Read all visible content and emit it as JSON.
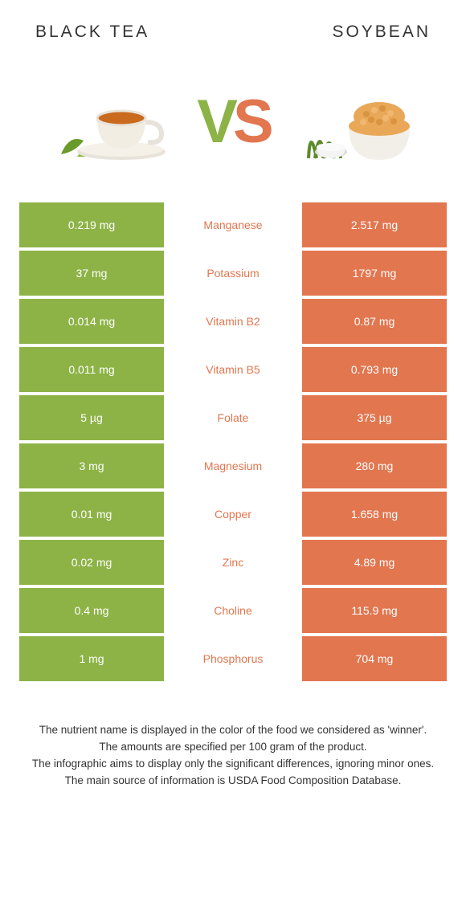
{
  "colors": {
    "left": "#8db347",
    "right": "#e2764f",
    "vs_v": "#8db347",
    "vs_s": "#e2764f"
  },
  "header": {
    "left": "Black tea",
    "right": "Soybean"
  },
  "vs": {
    "v": "V",
    "s": "S"
  },
  "rows": [
    {
      "left": "0.219 mg",
      "mid": "Manganese",
      "right": "2.517 mg",
      "mid_color": "#e2764f"
    },
    {
      "left": "37 mg",
      "mid": "Potassium",
      "right": "1797 mg",
      "mid_color": "#e2764f"
    },
    {
      "left": "0.014 mg",
      "mid": "Vitamin B2",
      "right": "0.87 mg",
      "mid_color": "#e2764f"
    },
    {
      "left": "0.011 mg",
      "mid": "Vitamin B5",
      "right": "0.793 mg",
      "mid_color": "#e2764f"
    },
    {
      "left": "5 µg",
      "mid": "Folate",
      "right": "375 µg",
      "mid_color": "#e2764f"
    },
    {
      "left": "3 mg",
      "mid": "Magnesium",
      "right": "280 mg",
      "mid_color": "#e2764f"
    },
    {
      "left": "0.01 mg",
      "mid": "Copper",
      "right": "1.658 mg",
      "mid_color": "#e2764f"
    },
    {
      "left": "0.02 mg",
      "mid": "Zinc",
      "right": "4.89 mg",
      "mid_color": "#e2764f"
    },
    {
      "left": "0.4 mg",
      "mid": "Choline",
      "right": "115.9 mg",
      "mid_color": "#e2764f"
    },
    {
      "left": "1 mg",
      "mid": "Phosphorus",
      "right": "704 mg",
      "mid_color": "#e2764f"
    }
  ],
  "footnotes": {
    "l1": "The nutrient name is displayed in the color of the food we considered as 'winner'.",
    "l2": "The amounts are specified per 100 gram of the product.",
    "l3": "The infographic aims to display only the significant differences, ignoring minor ones.",
    "l4": "The main source of information is USDA Food Composition Database."
  }
}
